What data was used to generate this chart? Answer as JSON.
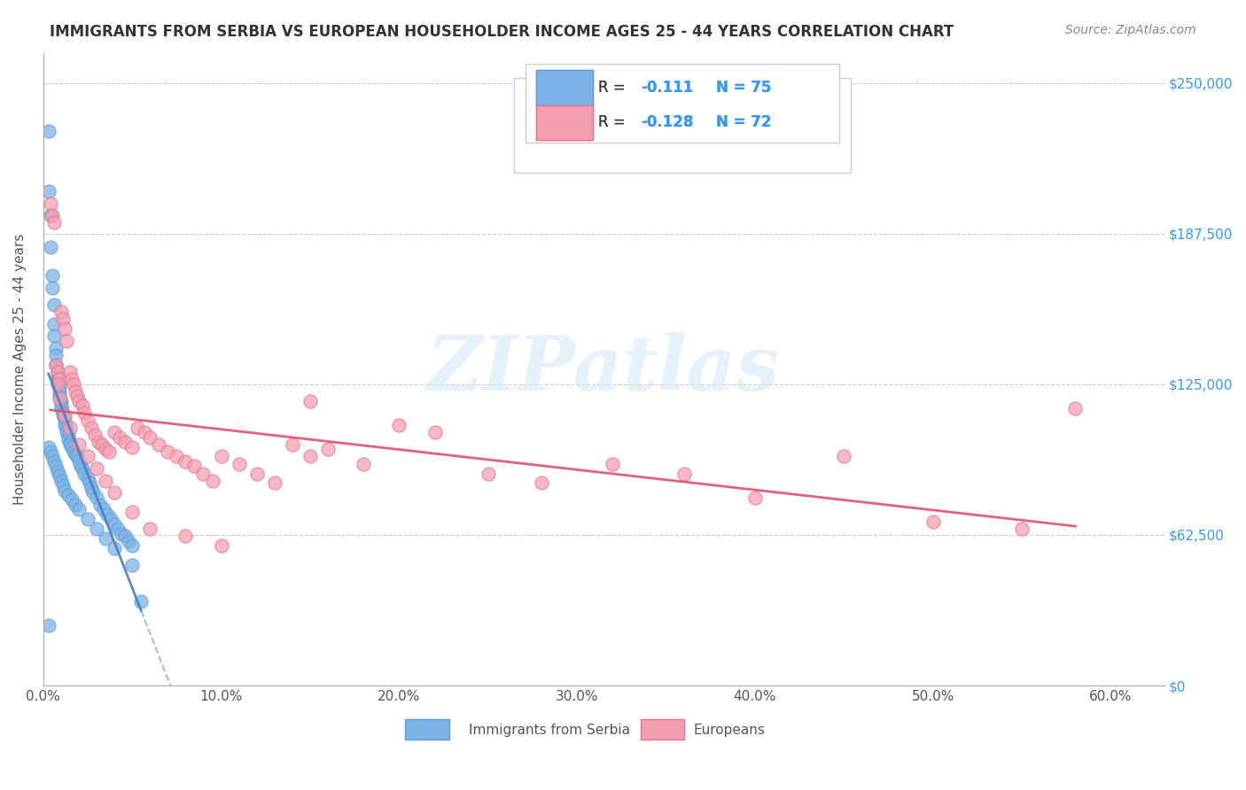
{
  "title": "IMMIGRANTS FROM SERBIA VS EUROPEAN HOUSEHOLDER INCOME AGES 25 - 44 YEARS CORRELATION CHART",
  "source": "Source: ZipAtlas.com",
  "ylabel": "Householder Income Ages 25 - 44 years",
  "xlabel_ticks": [
    "0.0%",
    "10.0%",
    "20.0%",
    "30.0%",
    "40.0%",
    "50.0%",
    "60.0%"
  ],
  "xlabel_vals": [
    0.0,
    0.1,
    0.2,
    0.3,
    0.4,
    0.5,
    0.6
  ],
  "ytick_labels": [
    "$0",
    "$62,500",
    "$125,000",
    "$187,500",
    "$250,000"
  ],
  "ytick_vals": [
    0,
    62500,
    125000,
    187500,
    250000
  ],
  "ymin": 0,
  "ymax": 262500,
  "xmin": 0,
  "xmax": 0.63,
  "serbia_color": "#7eb3e8",
  "serbia_edge": "#5a9fd4",
  "european_color": "#f4a0b0",
  "european_edge": "#e87090",
  "trend_serbia_color": "#4a7fc1",
  "trend_europe_color": "#e05070",
  "legend_R1": "R =  -0.111",
  "legend_N1": "N = 75",
  "legend_R2": "R = -0.128",
  "legend_N2": "N = 72",
  "legend_label1": "Immigrants from Serbia",
  "legend_label2": "Europeans",
  "watermark": "ZIPatlas",
  "grid_color": "#cccccc",
  "serbia_x": [
    0.003,
    0.003,
    0.004,
    0.004,
    0.005,
    0.005,
    0.006,
    0.006,
    0.006,
    0.007,
    0.007,
    0.007,
    0.008,
    0.008,
    0.008,
    0.009,
    0.009,
    0.009,
    0.01,
    0.01,
    0.01,
    0.011,
    0.011,
    0.012,
    0.012,
    0.013,
    0.013,
    0.014,
    0.014,
    0.015,
    0.015,
    0.016,
    0.017,
    0.018,
    0.019,
    0.02,
    0.021,
    0.022,
    0.023,
    0.025,
    0.026,
    0.027,
    0.028,
    0.03,
    0.032,
    0.034,
    0.036,
    0.038,
    0.04,
    0.042,
    0.044,
    0.046,
    0.048,
    0.05,
    0.003,
    0.004,
    0.005,
    0.006,
    0.007,
    0.008,
    0.009,
    0.01,
    0.011,
    0.012,
    0.014,
    0.016,
    0.018,
    0.02,
    0.025,
    0.03,
    0.035,
    0.04,
    0.05,
    0.055,
    0.003
  ],
  "serbia_y": [
    230000,
    205000,
    195000,
    182000,
    170000,
    165000,
    158000,
    150000,
    145000,
    140000,
    137000,
    133000,
    130000,
    128000,
    126000,
    124000,
    122000,
    120000,
    118000,
    116000,
    115000,
    113000,
    112000,
    110000,
    108000,
    107000,
    105000,
    104000,
    102000,
    101000,
    100000,
    99000,
    97000,
    96000,
    95000,
    93000,
    91000,
    90000,
    88000,
    86000,
    84000,
    82000,
    80000,
    78000,
    75000,
    73000,
    71000,
    69000,
    67000,
    65000,
    63000,
    62000,
    60000,
    58000,
    99000,
    97000,
    95000,
    93000,
    91000,
    89000,
    87000,
    85000,
    83000,
    81000,
    79000,
    77000,
    75000,
    73000,
    69000,
    65000,
    61000,
    57000,
    50000,
    35000,
    25000
  ],
  "europe_x": [
    0.004,
    0.005,
    0.006,
    0.007,
    0.008,
    0.009,
    0.01,
    0.011,
    0.012,
    0.013,
    0.015,
    0.016,
    0.017,
    0.018,
    0.019,
    0.02,
    0.022,
    0.023,
    0.025,
    0.027,
    0.029,
    0.031,
    0.033,
    0.035,
    0.037,
    0.04,
    0.043,
    0.046,
    0.05,
    0.053,
    0.057,
    0.06,
    0.065,
    0.07,
    0.075,
    0.08,
    0.085,
    0.09,
    0.095,
    0.1,
    0.11,
    0.12,
    0.13,
    0.14,
    0.15,
    0.16,
    0.18,
    0.2,
    0.22,
    0.25,
    0.28,
    0.32,
    0.36,
    0.4,
    0.45,
    0.5,
    0.55,
    0.58,
    0.008,
    0.009,
    0.012,
    0.015,
    0.02,
    0.025,
    0.03,
    0.035,
    0.04,
    0.05,
    0.06,
    0.08,
    0.1,
    0.15
  ],
  "europe_y": [
    200000,
    195000,
    192000,
    133000,
    130000,
    127000,
    155000,
    152000,
    148000,
    143000,
    130000,
    127000,
    125000,
    122000,
    120000,
    118000,
    116000,
    113000,
    110000,
    107000,
    104000,
    101000,
    100000,
    98000,
    97000,
    105000,
    103000,
    101000,
    99000,
    107000,
    105000,
    103000,
    100000,
    97000,
    95000,
    93000,
    91000,
    88000,
    85000,
    95000,
    92000,
    88000,
    84000,
    100000,
    95000,
    98000,
    92000,
    108000,
    105000,
    88000,
    84000,
    92000,
    88000,
    78000,
    95000,
    68000,
    65000,
    115000,
    125000,
    119000,
    112000,
    107000,
    100000,
    95000,
    90000,
    85000,
    80000,
    72000,
    65000,
    62000,
    58000,
    118000
  ]
}
